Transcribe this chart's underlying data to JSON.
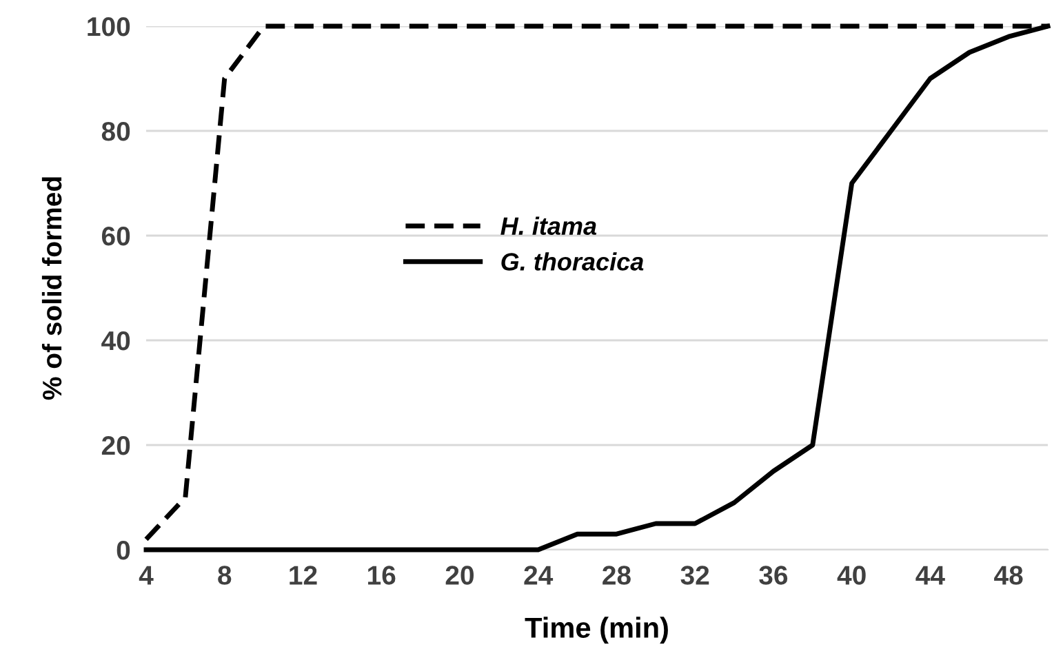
{
  "chart_data": {
    "type": "line",
    "xlabel": "Time (min)",
    "ylabel": "% of solid formed",
    "x": [
      4,
      6,
      8,
      10,
      12,
      14,
      16,
      18,
      20,
      22,
      24,
      26,
      28,
      30,
      32,
      34,
      36,
      38,
      40,
      42,
      44,
      46,
      48,
      50
    ],
    "series": [
      {
        "name": "H. itama",
        "color": "#000000",
        "line_style": "dashed",
        "values": [
          2,
          10,
          90,
          100,
          100,
          100,
          100,
          100,
          100,
          100,
          100,
          100,
          100,
          100,
          100,
          100,
          100,
          100,
          100,
          100,
          100,
          100,
          100,
          100
        ]
      },
      {
        "name": "G. thoracica",
        "color": "#000000",
        "line_style": "solid",
        "values": [
          0,
          0,
          0,
          0,
          0,
          0,
          0,
          0,
          0,
          0,
          0,
          3,
          3,
          5,
          5,
          9,
          15,
          20,
          70,
          80,
          90,
          95,
          98,
          100
        ]
      }
    ],
    "xlim": [
      4,
      50
    ],
    "xticks": [
      4,
      8,
      12,
      16,
      20,
      24,
      28,
      32,
      36,
      40,
      44,
      48
    ],
    "ylim": [
      0,
      100
    ],
    "yticks": [
      0,
      20,
      40,
      60,
      80,
      100
    ],
    "grid": "y",
    "legend": "center",
    "marker": "none"
  }
}
